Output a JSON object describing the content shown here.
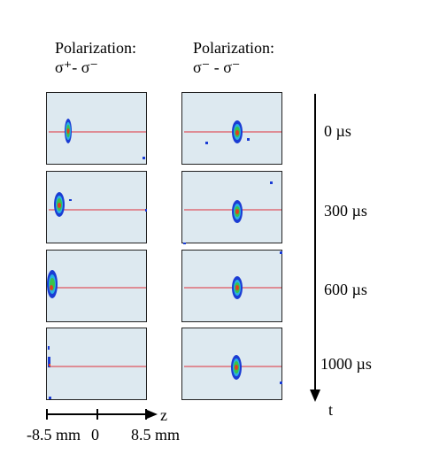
{
  "columns": [
    {
      "title": "Polarization:",
      "subtitle": "σ⁺- σ⁻"
    },
    {
      "title": "Polarization:",
      "subtitle": "σ⁻ - σ⁻"
    }
  ],
  "time_labels": [
    "0 µs",
    "300 µs",
    "600 µs",
    "1000 µs"
  ],
  "time_axis_label": "t",
  "z_axis": {
    "label": "z",
    "left": "-8.5 mm",
    "center": "0",
    "right": "8.5 mm"
  },
  "colors": {
    "panel_bg": "#dde9f0",
    "line": "#e0303a",
    "cloud_outer": "#1a3cd4",
    "cloud_mid": "#2ab0e0",
    "cloud_inner": "#3ac24a",
    "cloud_core": "#e04020"
  }
}
